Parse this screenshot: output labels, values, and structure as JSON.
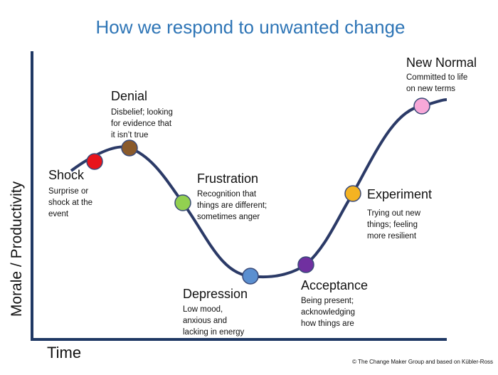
{
  "title": "How we respond to unwanted change",
  "y_axis_label": "Morale / Productivity",
  "x_axis_label": "Time",
  "credit": "© The Change Maker Group and based on Kübler-Ross",
  "nodes": [
    {
      "label": "Shock",
      "description": [
        "Surprise or",
        "shock at the",
        "event"
      ]
    },
    {
      "label": "Denial",
      "description": [
        "Disbelief; looking",
        "for evidence that",
        "it isn’t true"
      ]
    },
    {
      "label": "Frustration",
      "description": [
        "Recognition that",
        "things are different;",
        "sometimes anger"
      ]
    },
    {
      "label": "Depression",
      "description": [
        "Low mood,",
        "anxious and",
        "lacking in energy"
      ]
    },
    {
      "label": "Acceptance",
      "description": [
        "Being present;",
        "acknowledging",
        "how things are"
      ]
    },
    {
      "label": "Experiment",
      "description": [
        "Trying out new",
        "things; feeling",
        "more resilient"
      ]
    },
    {
      "label": "New Normal",
      "description": [
        "Committed to life",
        "on new terms"
      ]
    }
  ]
}
